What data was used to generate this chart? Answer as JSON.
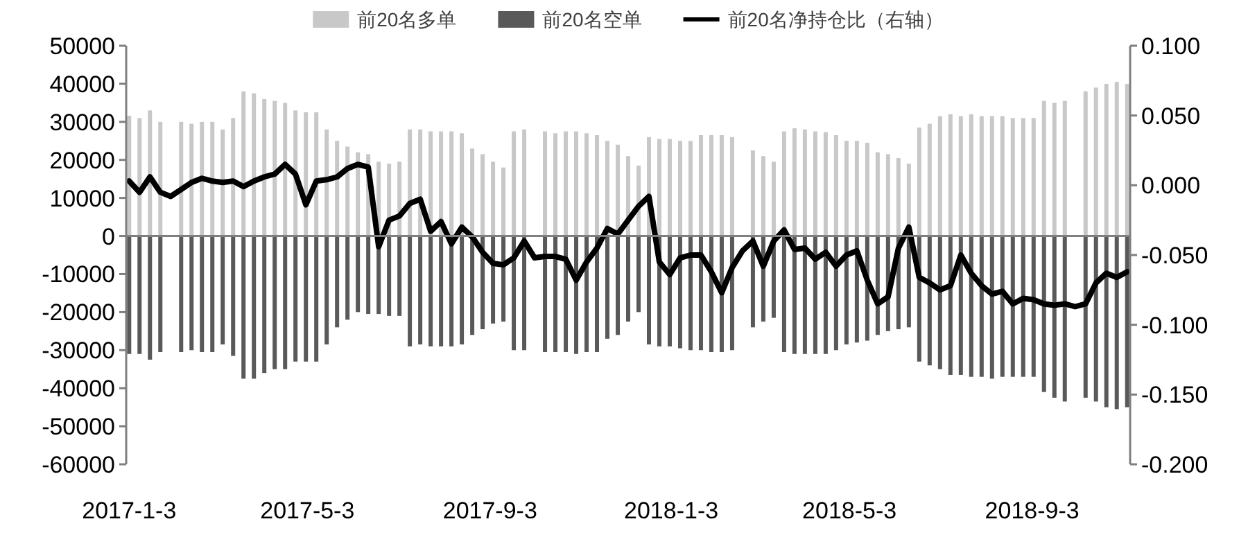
{
  "chart_data": {
    "type": "bar",
    "legend": "top",
    "stacked": true,
    "x": [
      "2017-01-03",
      "2017-01-10",
      "2017-01-17",
      "2017-01-24",
      "2017-01-31",
      "2017-02-07",
      "2017-02-14",
      "2017-02-21",
      "2017-02-28",
      "2017-03-07",
      "2017-03-14",
      "2017-03-21",
      "2017-03-28",
      "2017-04-04",
      "2017-04-11",
      "2017-04-18",
      "2017-04-25",
      "2017-05-02",
      "2017-05-09",
      "2017-05-16",
      "2017-05-23",
      "2017-05-30",
      "2017-06-06",
      "2017-06-13",
      "2017-06-20",
      "2017-06-27",
      "2017-07-04",
      "2017-07-11",
      "2017-07-18",
      "2017-07-25",
      "2017-08-01",
      "2017-08-08",
      "2017-08-15",
      "2017-08-22",
      "2017-08-29",
      "2017-09-05",
      "2017-09-12",
      "2017-09-19",
      "2017-09-26",
      "2017-10-03",
      "2017-10-10",
      "2017-10-17",
      "2017-10-24",
      "2017-10-31",
      "2017-11-07",
      "2017-11-14",
      "2017-11-21",
      "2017-11-28",
      "2017-12-05",
      "2017-12-12",
      "2017-12-19",
      "2017-12-26",
      "2018-01-02",
      "2018-01-09",
      "2018-01-16",
      "2018-01-23",
      "2018-01-30",
      "2018-02-06",
      "2018-02-13",
      "2018-02-20",
      "2018-02-27",
      "2018-03-06",
      "2018-03-13",
      "2018-03-20",
      "2018-03-27",
      "2018-04-03",
      "2018-04-10",
      "2018-04-17",
      "2018-04-24",
      "2018-05-01",
      "2018-05-08",
      "2018-05-15",
      "2018-05-22",
      "2018-05-29",
      "2018-06-05",
      "2018-06-12",
      "2018-06-19",
      "2018-06-26",
      "2018-07-03",
      "2018-07-10",
      "2018-07-17",
      "2018-07-24",
      "2018-07-31",
      "2018-08-07",
      "2018-08-14",
      "2018-08-21",
      "2018-08-28",
      "2018-09-04",
      "2018-09-11",
      "2018-09-18",
      "2018-09-25",
      "2018-10-02",
      "2018-10-09",
      "2018-10-16",
      "2018-10-23",
      "2018-10-30",
      "2018-11-06"
    ],
    "series": [
      {
        "name": "前20名多单",
        "color": "#c8c8c8",
        "values": [
          31600,
          31000,
          33000,
          30000,
          null,
          30000,
          29500,
          30000,
          30000,
          28000,
          31000,
          38000,
          37500,
          36000,
          35500,
          35000,
          33000,
          32500,
          32500,
          28000,
          25000,
          23500,
          22000,
          21500,
          19500,
          19000,
          19500,
          28000,
          28000,
          27500,
          27500,
          27500,
          27000,
          23000,
          21500,
          19500,
          18000,
          27500,
          28000,
          null,
          27500,
          27000,
          27500,
          27500,
          27000,
          26500,
          25000,
          24000,
          21000,
          18500,
          26000,
          25500,
          25500,
          25000,
          25000,
          26500,
          26500,
          26500,
          26000,
          null,
          22500,
          21000,
          19500,
          27500,
          28300,
          28000,
          27500,
          27300,
          26500,
          25000,
          25000,
          24500,
          22000,
          21500,
          20500,
          19000,
          28500,
          29500,
          31500,
          32000,
          31500,
          32000,
          31500,
          31500,
          31500,
          31000,
          31000,
          31000,
          35500,
          35000,
          35500,
          null,
          38000,
          39000,
          40000,
          40500,
          40000
        ]
      },
      {
        "name": "前20名空单",
        "color": "#595959",
        "values": [
          -31000,
          -31000,
          -32500,
          -30500,
          null,
          -30500,
          -30000,
          -30500,
          -30500,
          -28500,
          -31500,
          -37500,
          -37500,
          -36000,
          -35000,
          -35000,
          -33000,
          -33000,
          -33000,
          -28500,
          -24000,
          -22000,
          -20000,
          -20500,
          -20500,
          -21000,
          -21000,
          -29000,
          -28500,
          -29000,
          -29000,
          -29000,
          -28500,
          -26000,
          -24500,
          -23000,
          -22500,
          -30000,
          -30000,
          null,
          -30500,
          -30500,
          -30500,
          -31000,
          -30500,
          -30500,
          -27000,
          -26000,
          -22500,
          -20000,
          -28500,
          -29000,
          -29000,
          -29500,
          -30000,
          -30000,
          -30500,
          -30500,
          -30000,
          null,
          -24000,
          -22500,
          -21500,
          -30500,
          -31000,
          -31000,
          -31000,
          -31000,
          -30000,
          -28500,
          -28000,
          -27500,
          -26000,
          -25000,
          -24500,
          -24000,
          -33000,
          -34000,
          -35000,
          -36500,
          -36500,
          -37000,
          -37000,
          -37500,
          -37000,
          -37000,
          -37000,
          -37000,
          -41000,
          -42500,
          -43500,
          null,
          -42500,
          -43500,
          -45000,
          -45500,
          -45000
        ]
      },
      {
        "name": "前20名净持仓比（右轴）",
        "color": "#000000",
        "type": "line",
        "axis": "y2",
        "values": [
          0.003,
          -0.005,
          0.006,
          -0.005,
          -0.008,
          -0.003,
          0.002,
          0.005,
          0.003,
          0.002,
          0.003,
          -0.001,
          0.003,
          0.006,
          0.008,
          0.015,
          0.008,
          -0.014,
          0.003,
          0.004,
          0.006,
          0.012,
          0.015,
          0.013,
          -0.044,
          -0.025,
          -0.022,
          -0.013,
          -0.01,
          -0.033,
          -0.026,
          -0.042,
          -0.03,
          -0.037,
          -0.048,
          -0.056,
          -0.057,
          -0.052,
          -0.04,
          -0.052,
          -0.051,
          -0.051,
          -0.053,
          -0.068,
          -0.055,
          -0.045,
          -0.031,
          -0.035,
          -0.025,
          -0.015,
          -0.008,
          -0.055,
          -0.064,
          -0.052,
          -0.05,
          -0.05,
          -0.062,
          -0.077,
          -0.059,
          -0.047,
          -0.04,
          -0.058,
          -0.04,
          -0.032,
          -0.046,
          -0.045,
          -0.053,
          -0.048,
          -0.058,
          -0.05,
          -0.047,
          -0.068,
          -0.085,
          -0.08,
          -0.045,
          -0.03,
          -0.066,
          -0.07,
          -0.075,
          -0.072,
          -0.05,
          -0.063,
          -0.072,
          -0.078,
          -0.076,
          -0.085,
          -0.081,
          -0.082,
          -0.085,
          -0.086,
          -0.085,
          -0.087,
          -0.085,
          -0.07,
          -0.063,
          -0.066,
          -0.062
        ]
      }
    ],
    "xlim": [
      "2017-01-01",
      "2018-11-08"
    ],
    "xticks": [
      {
        "value": "2017-01-03",
        "label": "2017-1-3"
      },
      {
        "value": "2017-05-03",
        "label": "2017-5-3"
      },
      {
        "value": "2017-09-03",
        "label": "2017-9-3"
      },
      {
        "value": "2018-01-03",
        "label": "2018-1-3"
      },
      {
        "value": "2018-05-03",
        "label": "2018-5-3"
      },
      {
        "value": "2018-09-03",
        "label": "2018-9-3"
      }
    ],
    "ylim": [
      -60000,
      50000
    ],
    "yticks": [
      -60000,
      -50000,
      -40000,
      -30000,
      -20000,
      -10000,
      0,
      10000,
      20000,
      30000,
      40000,
      50000
    ],
    "y2lim": [
      -0.2,
      0.1
    ],
    "y2ticks": [
      {
        "value": -0.2,
        "label": "-0.200"
      },
      {
        "value": -0.15,
        "label": "-0.150"
      },
      {
        "value": -0.1,
        "label": "-0.100"
      },
      {
        "value": -0.05,
        "label": "-0.050"
      },
      {
        "value": 0,
        "label": "0.000"
      },
      {
        "value": 0.05,
        "label": "0.050"
      },
      {
        "value": 0.1,
        "label": "0.100"
      }
    ]
  }
}
